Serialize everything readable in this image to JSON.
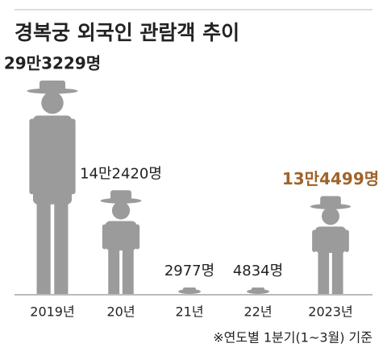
{
  "chart_data": {
    "type": "pictogram",
    "title": "경복궁 외국인 관람객 추이",
    "categories": [
      "2019년",
      "20년",
      "21년",
      "22년",
      "2023년"
    ],
    "values": [
      293229,
      142420,
      2977,
      4834,
      134499
    ],
    "value_labels": [
      "29만3229명",
      "14만2420명",
      "2977명",
      "4834명",
      "13만4499명"
    ],
    "color": "#9b9b9b",
    "highlight": 4,
    "highlight_color": "#a0632a",
    "bold": [
      0,
      4
    ],
    "note": "※연도별 1분기(1~3월) 기준"
  }
}
